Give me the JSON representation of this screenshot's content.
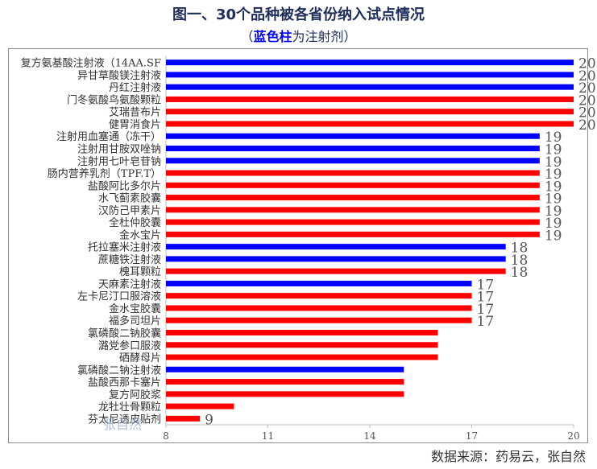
{
  "title": "图一、30个品种被各省份纳入试点情况",
  "subtitle": {
    "open": "（",
    "highlight": "蓝色柱",
    "rest": "为注射剂）"
  },
  "source": "数据来源：药易云，张自然",
  "watermark": "张自然",
  "colors": {
    "injection": "#0000ff",
    "other": "#ff0000"
  },
  "chart_data": {
    "type": "bar",
    "orientation": "horizontal",
    "xlim": [
      8,
      20
    ],
    "xticks": [
      8,
      11,
      14,
      17,
      20
    ],
    "legend": "none",
    "grid": false,
    "categories": [
      "复方氨基酸注射液（14AA.SF",
      "异甘草酸镁注射液",
      "丹红注射液",
      "门冬氨酸鸟氨酸颗粒",
      "艾瑞昔布片",
      "健胃消食片",
      "注射用血塞通（冻干）",
      "注射用甘胺双唑钠",
      "注射用七叶皂苷钠",
      "肠内营养乳剂（TPF.T）",
      "盐酸阿比多尔片",
      "水飞蓟素胶囊",
      "汉防己甲素片",
      "全杜仲胶囊",
      "金水宝片",
      "托拉塞米注射液",
      "蔗糖铁注射液",
      "槐耳颗粒",
      "天麻素注射液",
      "左卡尼汀口服溶液",
      "金水宝胶囊",
      "福多司坦片",
      "氯磷酸二钠胶囊",
      "潞党参口服液",
      "硒酵母片",
      "氯磷酸二钠注射液",
      "盐酸西那卡塞片",
      "复方阿胶浆",
      "龙牡壮骨颗粒",
      "芬太尼透皮贴剂"
    ],
    "values": [
      20,
      20,
      20,
      20,
      20,
      20,
      19,
      19,
      19,
      19,
      19,
      19,
      19,
      19,
      19,
      18,
      18,
      18,
      17,
      17,
      17,
      17,
      16,
      16,
      16,
      15,
      15,
      15,
      10,
      9
    ],
    "injection": [
      true,
      true,
      true,
      false,
      false,
      false,
      true,
      true,
      true,
      false,
      false,
      false,
      false,
      false,
      false,
      true,
      true,
      false,
      true,
      false,
      false,
      false,
      false,
      false,
      false,
      true,
      false,
      false,
      false,
      false
    ],
    "data_labels": [
      "20",
      "20",
      "20",
      "20",
      "20",
      "20",
      "19",
      "19",
      "19",
      "19",
      "19",
      "19",
      "19",
      "19",
      "19",
      "18",
      "18",
      "18",
      "17",
      "17",
      "17",
      "17",
      "",
      "",
      "",
      "",
      "",
      "",
      "",
      "9"
    ]
  }
}
